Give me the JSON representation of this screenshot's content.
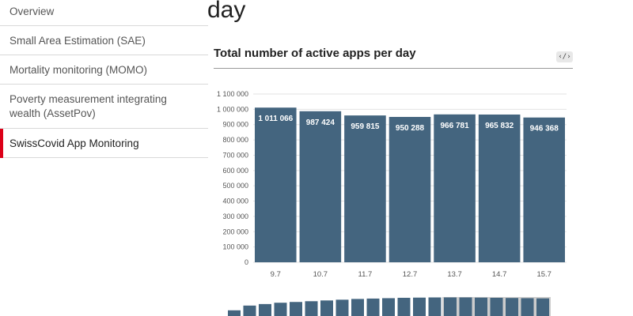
{
  "sidebar": {
    "items": [
      {
        "label": "Overview"
      },
      {
        "label": "Small Area Estimation (SAE)"
      },
      {
        "label": "Mortality monitoring (MOMO)"
      },
      {
        "label_line1": "Poverty measurement integrating",
        "label_line2": "wealth (AssetPov)"
      },
      {
        "label": "SwissCovid App Monitoring"
      }
    ]
  },
  "page": {
    "heading": "day"
  },
  "chart_card": {
    "title": "Total number of active apps per day",
    "code_icon": "code-embed-icon",
    "code_glyph": "‹/›"
  },
  "colors": {
    "bar": "#44657f",
    "brush_bar": "#44657f",
    "brush_selection": "#cccccc",
    "accent": "#dc0018"
  },
  "chart_data": {
    "type": "bar",
    "title": "Total number of active apps per day",
    "categories": [
      "9.7",
      "10.7",
      "11.7",
      "12.7",
      "13.7",
      "14.7",
      "15.7"
    ],
    "values": [
      1011066,
      987424,
      959815,
      950288,
      966781,
      965832,
      946368
    ],
    "value_labels": [
      "1 011 066",
      "987 424",
      "959 815",
      "950 288",
      "966 781",
      "965 832",
      "946 368"
    ],
    "ylim": [
      0,
      1100000
    ],
    "yticks": [
      0,
      100000,
      200000,
      300000,
      400000,
      500000,
      600000,
      700000,
      800000,
      900000,
      1000000,
      1100000
    ],
    "ytick_labels": [
      "0",
      "100 000",
      "200 000",
      "300 000",
      "400 000",
      "500 000",
      "600 000",
      "700 000",
      "800 000",
      "900 000",
      "1 000 000",
      "1 100 000"
    ],
    "grid": true
  },
  "brush_data": {
    "values": [
      0.3,
      0.55,
      0.63,
      0.7,
      0.74,
      0.78,
      0.82,
      0.86,
      0.9,
      0.92,
      0.94,
      0.96,
      0.97,
      0.98,
      0.98,
      0.98,
      0.97,
      0.96,
      0.95,
      0.94,
      0.93
    ],
    "selected_from": 14
  }
}
